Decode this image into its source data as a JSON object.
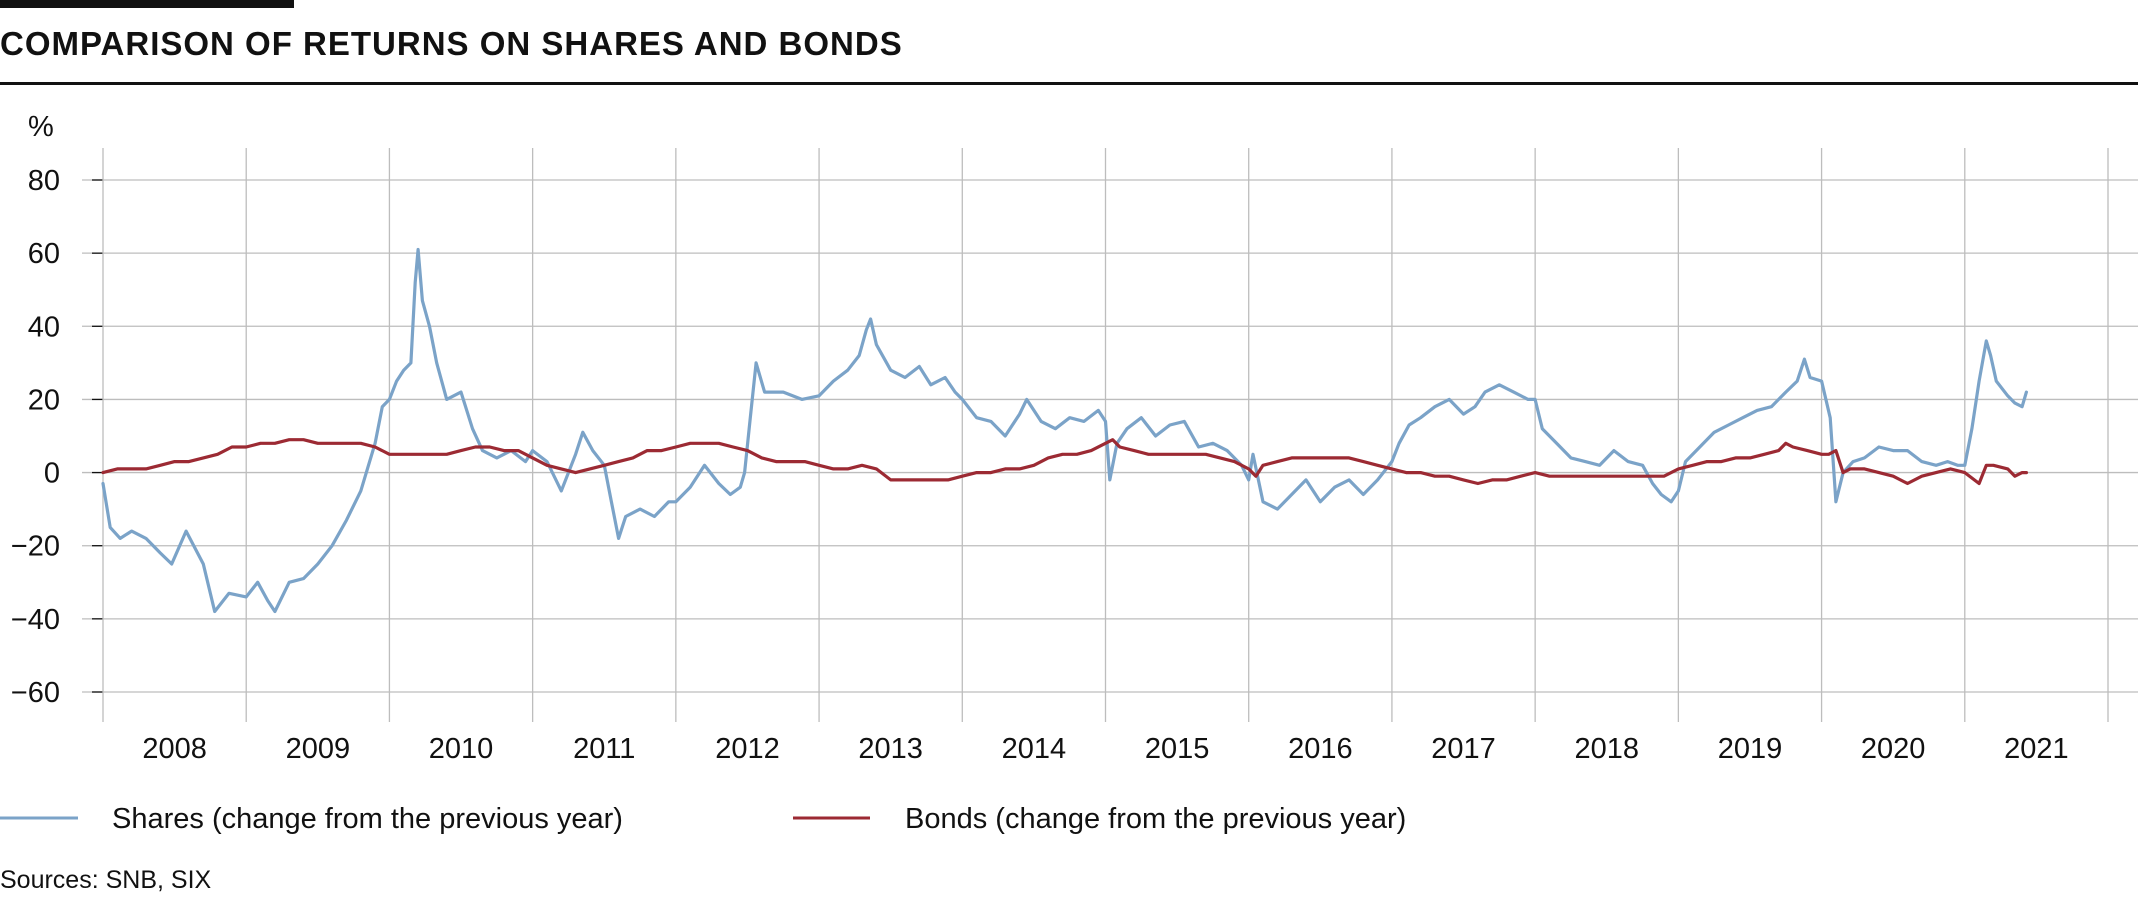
{
  "chart_data": {
    "type": "line",
    "title": "COMPARISON OF RETURNS ON SHARES AND BONDS",
    "y_unit": "%",
    "ylim": [
      -60,
      80
    ],
    "y_ticks": [
      "80",
      "60",
      "40",
      "20",
      "0",
      "−20",
      "−40",
      "−60"
    ],
    "y_tick_values": [
      80,
      60,
      40,
      20,
      0,
      -20,
      -40,
      -60
    ],
    "x_categories": [
      "2008",
      "2009",
      "2010",
      "2011",
      "2012",
      "2013",
      "2014",
      "2015",
      "2016",
      "2017",
      "2018",
      "2019",
      "2020",
      "2021"
    ],
    "x_range": [
      2008.0,
      2022.0
    ],
    "grid": true,
    "legend_position": "bottom",
    "series": [
      {
        "name": "Shares (change from the previous year)",
        "color": "#7ba3c8",
        "points": [
          [
            2008.0,
            -3
          ],
          [
            2008.05,
            -15
          ],
          [
            2008.12,
            -18
          ],
          [
            2008.2,
            -16
          ],
          [
            2008.3,
            -18
          ],
          [
            2008.4,
            -22
          ],
          [
            2008.48,
            -25
          ],
          [
            2008.58,
            -16
          ],
          [
            2008.7,
            -25
          ],
          [
            2008.78,
            -38
          ],
          [
            2008.88,
            -33
          ],
          [
            2009.0,
            -34
          ],
          [
            2009.08,
            -30
          ],
          [
            2009.15,
            -35
          ],
          [
            2009.2,
            -38
          ],
          [
            2009.3,
            -30
          ],
          [
            2009.4,
            -29
          ],
          [
            2009.5,
            -25
          ],
          [
            2009.6,
            -20
          ],
          [
            2009.7,
            -13
          ],
          [
            2009.8,
            -5
          ],
          [
            2009.9,
            8
          ],
          [
            2009.95,
            18
          ],
          [
            2010.0,
            20
          ],
          [
            2010.05,
            25
          ],
          [
            2010.1,
            28
          ],
          [
            2010.15,
            30
          ],
          [
            2010.18,
            52
          ],
          [
            2010.2,
            61
          ],
          [
            2010.23,
            47
          ],
          [
            2010.28,
            40
          ],
          [
            2010.33,
            30
          ],
          [
            2010.4,
            20
          ],
          [
            2010.5,
            22
          ],
          [
            2010.58,
            12
          ],
          [
            2010.65,
            6
          ],
          [
            2010.75,
            4
          ],
          [
            2010.85,
            6
          ],
          [
            2010.95,
            3
          ],
          [
            2011.0,
            6
          ],
          [
            2011.1,
            3
          ],
          [
            2011.2,
            -5
          ],
          [
            2011.3,
            5
          ],
          [
            2011.35,
            11
          ],
          [
            2011.42,
            6
          ],
          [
            2011.5,
            2
          ],
          [
            2011.55,
            -8
          ],
          [
            2011.6,
            -18
          ],
          [
            2011.65,
            -12
          ],
          [
            2011.75,
            -10
          ],
          [
            2011.85,
            -12
          ],
          [
            2011.95,
            -8
          ],
          [
            2012.0,
            -8
          ],
          [
            2012.1,
            -4
          ],
          [
            2012.2,
            2
          ],
          [
            2012.3,
            -3
          ],
          [
            2012.38,
            -6
          ],
          [
            2012.45,
            -4
          ],
          [
            2012.48,
            0
          ],
          [
            2012.52,
            15
          ],
          [
            2012.56,
            30
          ],
          [
            2012.62,
            22
          ],
          [
            2012.75,
            22
          ],
          [
            2012.88,
            20
          ],
          [
            2013.0,
            21
          ],
          [
            2013.1,
            25
          ],
          [
            2013.2,
            28
          ],
          [
            2013.28,
            32
          ],
          [
            2013.33,
            39
          ],
          [
            2013.36,
            42
          ],
          [
            2013.4,
            35
          ],
          [
            2013.5,
            28
          ],
          [
            2013.6,
            26
          ],
          [
            2013.7,
            29
          ],
          [
            2013.78,
            24
          ],
          [
            2013.88,
            26
          ],
          [
            2013.95,
            22
          ],
          [
            2014.0,
            20
          ],
          [
            2014.1,
            15
          ],
          [
            2014.2,
            14
          ],
          [
            2014.3,
            10
          ],
          [
            2014.4,
            16
          ],
          [
            2014.45,
            20
          ],
          [
            2014.55,
            14
          ],
          [
            2014.65,
            12
          ],
          [
            2014.75,
            15
          ],
          [
            2014.85,
            14
          ],
          [
            2014.95,
            17
          ],
          [
            2015.0,
            14
          ],
          [
            2015.03,
            -2
          ],
          [
            2015.08,
            8
          ],
          [
            2015.15,
            12
          ],
          [
            2015.25,
            15
          ],
          [
            2015.35,
            10
          ],
          [
            2015.45,
            13
          ],
          [
            2015.55,
            14
          ],
          [
            2015.65,
            7
          ],
          [
            2015.75,
            8
          ],
          [
            2015.85,
            6
          ],
          [
            2015.95,
            2
          ],
          [
            2016.0,
            -2
          ],
          [
            2016.03,
            5
          ],
          [
            2016.1,
            -8
          ],
          [
            2016.2,
            -10
          ],
          [
            2016.3,
            -6
          ],
          [
            2016.4,
            -2
          ],
          [
            2016.5,
            -8
          ],
          [
            2016.6,
            -4
          ],
          [
            2016.7,
            -2
          ],
          [
            2016.8,
            -6
          ],
          [
            2016.9,
            -2
          ],
          [
            2017.0,
            3
          ],
          [
            2017.05,
            8
          ],
          [
            2017.12,
            13
          ],
          [
            2017.2,
            15
          ],
          [
            2017.3,
            18
          ],
          [
            2017.4,
            20
          ],
          [
            2017.5,
            16
          ],
          [
            2017.58,
            18
          ],
          [
            2017.65,
            22
          ],
          [
            2017.75,
            24
          ],
          [
            2017.85,
            22
          ],
          [
            2017.95,
            20
          ],
          [
            2018.0,
            20
          ],
          [
            2018.05,
            12
          ],
          [
            2018.15,
            8
          ],
          [
            2018.25,
            4
          ],
          [
            2018.35,
            3
          ],
          [
            2018.45,
            2
          ],
          [
            2018.55,
            6
          ],
          [
            2018.65,
            3
          ],
          [
            2018.75,
            2
          ],
          [
            2018.82,
            -3
          ],
          [
            2018.88,
            -6
          ],
          [
            2018.95,
            -8
          ],
          [
            2019.0,
            -5
          ],
          [
            2019.05,
            3
          ],
          [
            2019.15,
            7
          ],
          [
            2019.25,
            11
          ],
          [
            2019.35,
            13
          ],
          [
            2019.45,
            15
          ],
          [
            2019.55,
            17
          ],
          [
            2019.65,
            18
          ],
          [
            2019.75,
            22
          ],
          [
            2019.83,
            25
          ],
          [
            2019.88,
            31
          ],
          [
            2019.92,
            26
          ],
          [
            2020.0,
            25
          ],
          [
            2020.06,
            15
          ],
          [
            2020.1,
            -8
          ],
          [
            2020.15,
            0
          ],
          [
            2020.22,
            3
          ],
          [
            2020.3,
            4
          ],
          [
            2020.4,
            7
          ],
          [
            2020.5,
            6
          ],
          [
            2020.6,
            6
          ],
          [
            2020.7,
            3
          ],
          [
            2020.8,
            2
          ],
          [
            2020.88,
            3
          ],
          [
            2020.95,
            2
          ],
          [
            2021.0,
            2
          ],
          [
            2021.05,
            12
          ],
          [
            2021.1,
            25
          ],
          [
            2021.15,
            36
          ],
          [
            2021.18,
            32
          ],
          [
            2021.22,
            25
          ],
          [
            2021.3,
            21
          ],
          [
            2021.35,
            19
          ],
          [
            2021.4,
            18
          ],
          [
            2021.43,
            22
          ]
        ]
      },
      {
        "name": "Bonds (change from the previous year)",
        "color": "#9c2a33",
        "points": [
          [
            2008.0,
            0
          ],
          [
            2008.1,
            1
          ],
          [
            2008.2,
            1
          ],
          [
            2008.3,
            1
          ],
          [
            2008.4,
            2
          ],
          [
            2008.5,
            3
          ],
          [
            2008.6,
            3
          ],
          [
            2008.7,
            4
          ],
          [
            2008.8,
            5
          ],
          [
            2008.9,
            7
          ],
          [
            2009.0,
            7
          ],
          [
            2009.1,
            8
          ],
          [
            2009.2,
            8
          ],
          [
            2009.3,
            9
          ],
          [
            2009.4,
            9
          ],
          [
            2009.5,
            8
          ],
          [
            2009.6,
            8
          ],
          [
            2009.7,
            8
          ],
          [
            2009.8,
            8
          ],
          [
            2009.9,
            7
          ],
          [
            2010.0,
            5
          ],
          [
            2010.1,
            5
          ],
          [
            2010.2,
            5
          ],
          [
            2010.3,
            5
          ],
          [
            2010.4,
            5
          ],
          [
            2010.5,
            6
          ],
          [
            2010.6,
            7
          ],
          [
            2010.7,
            7
          ],
          [
            2010.8,
            6
          ],
          [
            2010.9,
            6
          ],
          [
            2011.0,
            4
          ],
          [
            2011.1,
            2
          ],
          [
            2011.2,
            1
          ],
          [
            2011.3,
            0
          ],
          [
            2011.4,
            1
          ],
          [
            2011.5,
            2
          ],
          [
            2011.6,
            3
          ],
          [
            2011.7,
            4
          ],
          [
            2011.8,
            6
          ],
          [
            2011.9,
            6
          ],
          [
            2012.0,
            7
          ],
          [
            2012.1,
            8
          ],
          [
            2012.2,
            8
          ],
          [
            2012.3,
            8
          ],
          [
            2012.4,
            7
          ],
          [
            2012.5,
            6
          ],
          [
            2012.6,
            4
          ],
          [
            2012.7,
            3
          ],
          [
            2012.8,
            3
          ],
          [
            2012.9,
            3
          ],
          [
            2013.0,
            2
          ],
          [
            2013.1,
            1
          ],
          [
            2013.2,
            1
          ],
          [
            2013.3,
            2
          ],
          [
            2013.4,
            1
          ],
          [
            2013.5,
            -2
          ],
          [
            2013.6,
            -2
          ],
          [
            2013.7,
            -2
          ],
          [
            2013.8,
            -2
          ],
          [
            2013.9,
            -2
          ],
          [
            2014.0,
            -1
          ],
          [
            2014.1,
            0
          ],
          [
            2014.2,
            0
          ],
          [
            2014.3,
            1
          ],
          [
            2014.4,
            1
          ],
          [
            2014.5,
            2
          ],
          [
            2014.6,
            4
          ],
          [
            2014.7,
            5
          ],
          [
            2014.8,
            5
          ],
          [
            2014.9,
            6
          ],
          [
            2015.0,
            8
          ],
          [
            2015.05,
            9
          ],
          [
            2015.1,
            7
          ],
          [
            2015.2,
            6
          ],
          [
            2015.3,
            5
          ],
          [
            2015.4,
            5
          ],
          [
            2015.5,
            5
          ],
          [
            2015.6,
            5
          ],
          [
            2015.7,
            5
          ],
          [
            2015.8,
            4
          ],
          [
            2015.9,
            3
          ],
          [
            2016.0,
            1
          ],
          [
            2016.05,
            -1
          ],
          [
            2016.1,
            2
          ],
          [
            2016.2,
            3
          ],
          [
            2016.3,
            4
          ],
          [
            2016.4,
            4
          ],
          [
            2016.5,
            4
          ],
          [
            2016.6,
            4
          ],
          [
            2016.7,
            4
          ],
          [
            2016.8,
            3
          ],
          [
            2016.9,
            2
          ],
          [
            2017.0,
            1
          ],
          [
            2017.1,
            0
          ],
          [
            2017.2,
            0
          ],
          [
            2017.3,
            -1
          ],
          [
            2017.4,
            -1
          ],
          [
            2017.5,
            -2
          ],
          [
            2017.6,
            -3
          ],
          [
            2017.7,
            -2
          ],
          [
            2017.8,
            -2
          ],
          [
            2017.9,
            -1
          ],
          [
            2018.0,
            0
          ],
          [
            2018.1,
            -1
          ],
          [
            2018.2,
            -1
          ],
          [
            2018.3,
            -1
          ],
          [
            2018.4,
            -1
          ],
          [
            2018.5,
            -1
          ],
          [
            2018.6,
            -1
          ],
          [
            2018.7,
            -1
          ],
          [
            2018.8,
            -1
          ],
          [
            2018.9,
            -1
          ],
          [
            2019.0,
            1
          ],
          [
            2019.1,
            2
          ],
          [
            2019.2,
            3
          ],
          [
            2019.3,
            3
          ],
          [
            2019.4,
            4
          ],
          [
            2019.5,
            4
          ],
          [
            2019.6,
            5
          ],
          [
            2019.7,
            6
          ],
          [
            2019.75,
            8
          ],
          [
            2019.8,
            7
          ],
          [
            2019.9,
            6
          ],
          [
            2020.0,
            5
          ],
          [
            2020.05,
            5
          ],
          [
            2020.1,
            6
          ],
          [
            2020.15,
            0
          ],
          [
            2020.2,
            1
          ],
          [
            2020.3,
            1
          ],
          [
            2020.4,
            0
          ],
          [
            2020.5,
            -1
          ],
          [
            2020.6,
            -3
          ],
          [
            2020.7,
            -1
          ],
          [
            2020.8,
            0
          ],
          [
            2020.9,
            1
          ],
          [
            2021.0,
            0
          ],
          [
            2021.1,
            -3
          ],
          [
            2021.15,
            2
          ],
          [
            2021.2,
            2
          ],
          [
            2021.3,
            1
          ],
          [
            2021.35,
            -1
          ],
          [
            2021.4,
            0
          ],
          [
            2021.43,
            0
          ]
        ]
      }
    ],
    "source": "Sources: SNB, SIX"
  }
}
